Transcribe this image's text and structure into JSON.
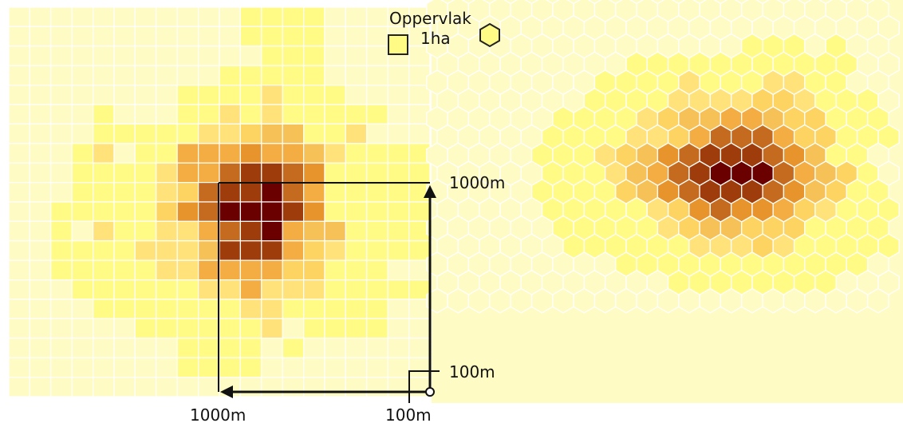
{
  "legend": {
    "title": "Oppervlak",
    "value": "1ha",
    "square_icon": "square-1ha-icon",
    "hexagon_icon": "hexagon-1ha-icon"
  },
  "dimensions": {
    "large_x": "1000m",
    "large_y": "1000m",
    "small_x": "100m",
    "small_y": "100m"
  },
  "palette": {
    "background": "#fffbc4",
    "grid_line": "#ffffff",
    "axis": "#111111",
    "levels": [
      "#fffbc4",
      "#fffb85",
      "#ffe37a",
      "#fdd462",
      "#f6c258",
      "#f3ad42",
      "#e8942d",
      "#c46b1f",
      "#9e3d0b",
      "#6b0000"
    ]
  },
  "square_grid_rows": [
    "...........1111........",
    "...........1111........",
    "............111........",
    "..........11111........",
    "........11112111........",
    "....1...1121211111......",
    "....1111122344112.......",
    "...1201155565542111111..",
    "...1111255788761111111..",
    "...1111237889751111111..",
    "..11111367999861111111..",
    "..1.2112257895441111....",
    "..11112224888532111111..",
    "..1111122555533111......",
    "...11111122522211111....",
    "....11111112211111......",
    "......1111112.1111......",
    "........1111.1..........",
    "........1111............",
    "......................."
  ],
  "hex_grid_rows": [
    "...........................",
    "...........................",
    "...............111.1.......",
    ".........11111111111.......",
    "........111121112211.......",
    ".......11112222332111......",
    "......1111234455433111111..",
    ".....1111223577753311121...",
    ".....11123467888764110111..",
    ".....1112457899975431011...",
    ".....1111346788876431111...",
    ".....11111236766532111110..",
    "......11111234433311111....",
    "......1111112223211111.....",
    ".........111111111111......",
    "...........11111111........",
    "..........................."
  ]
}
